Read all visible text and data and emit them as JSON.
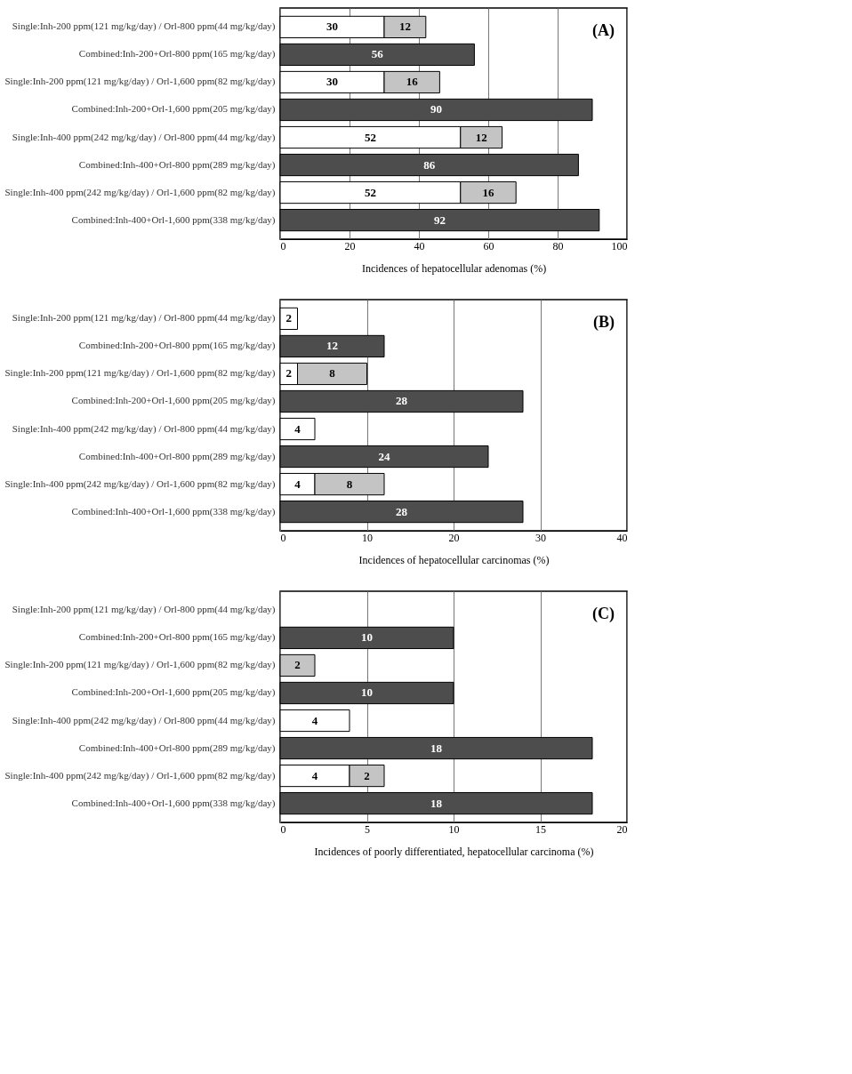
{
  "chart_data": [
    {
      "type": "bar",
      "orientation": "horizontal",
      "stacked": true,
      "data_labels": true,
      "grid": "x",
      "categories": [
        "Single:Inh-200 ppm(121 mg/kg/day) / Orl-800 ppm(44 mg/kg/day)",
        "Combined:Inh-200+Orl-800 ppm(165 mg/kg/day)",
        "Single:Inh-200 ppm(121 mg/kg/day) / Orl-1,600 ppm(82 mg/kg/day)",
        "Combined:Inh-200+Orl-1,600 ppm(205 mg/kg/day)",
        "Single:Inh-400 ppm(242 mg/kg/day) / Orl-800 ppm(44 mg/kg/day)",
        "Combined:Inh-400+Orl-800 ppm(289 mg/kg/day)",
        "Single:Inh-400 ppm(242 mg/kg/day) / Orl-1,600 ppm(82 mg/kg/day)",
        "Combined:Inh-400+Orl-1,600 ppm(338 mg/kg/day)"
      ],
      "series": [
        {
          "color": "#ffffff",
          "values": [
            30,
            null,
            30,
            null,
            52,
            null,
            52,
            null
          ]
        },
        {
          "color": "#c4c4c4",
          "values": [
            12,
            null,
            16,
            null,
            12,
            null,
            16,
            null
          ]
        },
        {
          "color": "#4d4d4d",
          "values": [
            null,
            56,
            null,
            90,
            null,
            86,
            null,
            92
          ]
        }
      ],
      "xlim": [
        0,
        100
      ],
      "xticks": [
        0,
        20,
        40,
        60,
        80,
        100
      ],
      "xlabel": "Incidences of hepatocellular adenomas (%)",
      "annotations": [
        "(A)"
      ]
    },
    {
      "type": "bar",
      "orientation": "horizontal",
      "stacked": true,
      "data_labels": true,
      "grid": "x",
      "categories": [
        "Single:Inh-200 ppm(121 mg/kg/day) / Orl-800 ppm(44 mg/kg/day)",
        "Combined:Inh-200+Orl-800 ppm(165 mg/kg/day)",
        "Single:Inh-200 ppm(121 mg/kg/day) / Orl-1,600 ppm(82 mg/kg/day)",
        "Combined:Inh-200+Orl-1,600 ppm(205 mg/kg/day)",
        "Single:Inh-400 ppm(242 mg/kg/day) / Orl-800 ppm(44 mg/kg/day)",
        "Combined:Inh-400+Orl-800 ppm(289 mg/kg/day)",
        "Single:Inh-400 ppm(242 mg/kg/day) / Orl-1,600 ppm(82 mg/kg/day)",
        "Combined:Inh-400+Orl-1,600 ppm(338 mg/kg/day)"
      ],
      "series": [
        {
          "color": "#ffffff",
          "values": [
            2,
            null,
            2,
            null,
            4,
            null,
            4,
            null
          ]
        },
        {
          "color": "#c4c4c4",
          "values": [
            null,
            null,
            8,
            null,
            null,
            null,
            8,
            null
          ]
        },
        {
          "color": "#4d4d4d",
          "values": [
            null,
            12,
            null,
            28,
            null,
            24,
            null,
            28
          ]
        }
      ],
      "xlim": [
        0,
        40
      ],
      "xticks": [
        0,
        10,
        20,
        30,
        40
      ],
      "xlabel": "Incidences of hepatocellular carcinomas (%)",
      "annotations": [
        "(B)"
      ]
    },
    {
      "type": "bar",
      "orientation": "horizontal",
      "stacked": true,
      "data_labels": true,
      "grid": "x",
      "categories": [
        "Single:Inh-200 ppm(121 mg/kg/day) / Orl-800 ppm(44 mg/kg/day)",
        "Combined:Inh-200+Orl-800 ppm(165 mg/kg/day)",
        "Single:Inh-200 ppm(121 mg/kg/day) / Orl-1,600 ppm(82 mg/kg/day)",
        "Combined:Inh-200+Orl-1,600 ppm(205 mg/kg/day)",
        "Single:Inh-400 ppm(242 mg/kg/day) / Orl-800 ppm(44 mg/kg/day)",
        "Combined:Inh-400+Orl-800 ppm(289 mg/kg/day)",
        "Single:Inh-400 ppm(242 mg/kg/day) / Orl-1,600 ppm(82 mg/kg/day)",
        "Combined:Inh-400+Orl-1,600 ppm(338 mg/kg/day)"
      ],
      "series": [
        {
          "color": "#ffffff",
          "values": [
            null,
            null,
            null,
            null,
            4,
            null,
            4,
            null
          ]
        },
        {
          "color": "#c4c4c4",
          "values": [
            null,
            null,
            2,
            null,
            null,
            null,
            2,
            null
          ]
        },
        {
          "color": "#4d4d4d",
          "values": [
            null,
            10,
            null,
            10,
            null,
            18,
            null,
            18
          ]
        }
      ],
      "xlim": [
        0,
        20
      ],
      "xticks": [
        0,
        5,
        10,
        15,
        20
      ],
      "xlabel": "Incidences of poorly differentiated, hepatocellular carcinoma (%)",
      "annotations": [
        "(C)"
      ]
    }
  ]
}
